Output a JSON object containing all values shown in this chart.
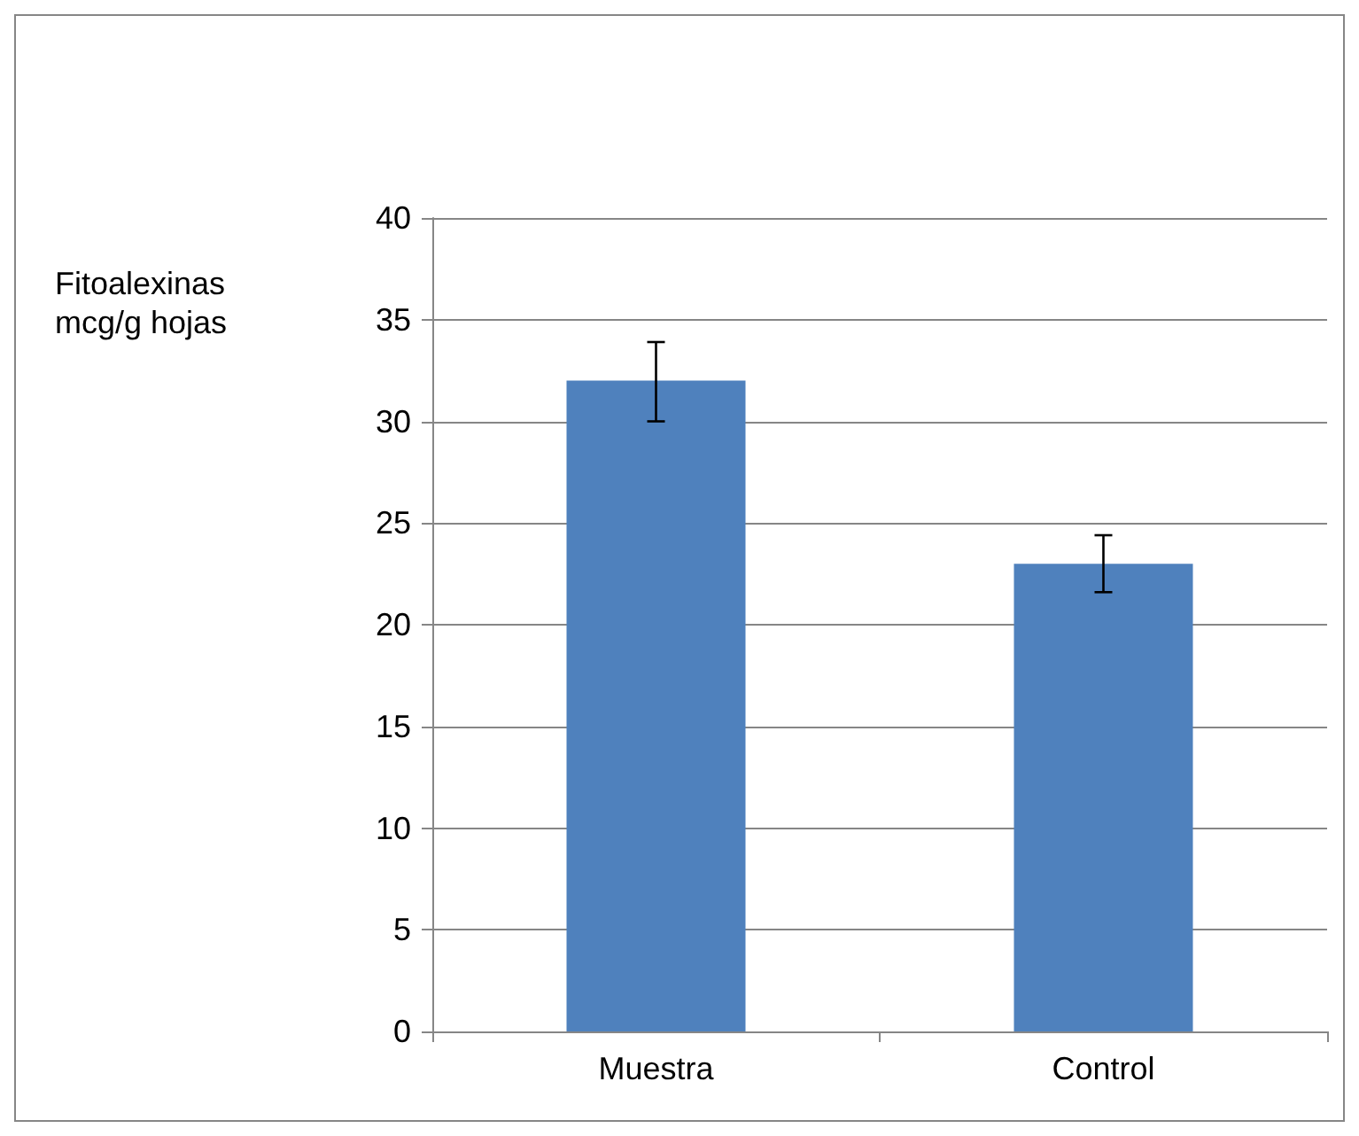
{
  "chart_data": {
    "type": "bar",
    "ylabel": "Fitoalexinas mcg/g hojas",
    "categories": [
      "Muestra",
      "Control"
    ],
    "values": [
      32,
      23
    ],
    "color": "#4f81bd",
    "errors": [
      [
        30.0,
        33.9
      ],
      [
        21.6,
        24.4
      ]
    ],
    "ylim": [
      0,
      40
    ],
    "yticks": [
      0,
      5,
      10,
      15,
      20,
      25,
      30,
      35,
      40
    ],
    "grid": "y"
  }
}
